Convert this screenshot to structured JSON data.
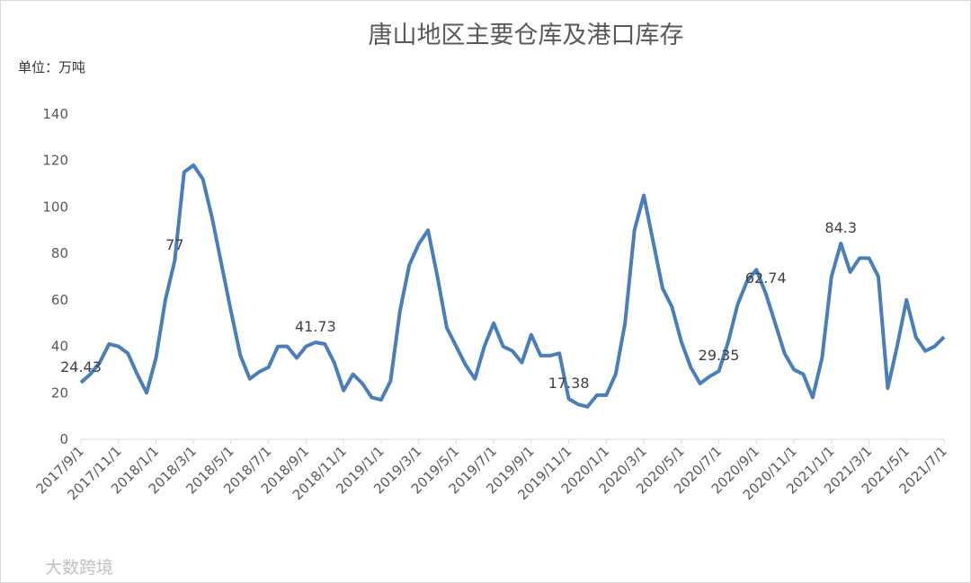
{
  "chart_data": {
    "type": "line",
    "title": "唐山地区主要仓库及港口库存",
    "y_axis_label": "单位：万吨",
    "watermark": "大数跨境",
    "categories": [
      "2017/9/1",
      null,
      null,
      null,
      "2017/11/1",
      null,
      null,
      null,
      "2018/1/1",
      null,
      null,
      null,
      "2018/3/1",
      null,
      null,
      null,
      "2018/5/1",
      null,
      null,
      null,
      "2018/7/1",
      null,
      null,
      null,
      "2018/9/1",
      null,
      null,
      null,
      "2018/11/1",
      null,
      null,
      null,
      "2019/1/1",
      null,
      null,
      null,
      "2019/3/1",
      null,
      null,
      null,
      "2019/5/1",
      null,
      null,
      null,
      "2019/7/1",
      null,
      null,
      null,
      "2019/9/1",
      null,
      null,
      null,
      "2019/11/1",
      null,
      null,
      null,
      "2020/1/1",
      null,
      null,
      null,
      "2020/3/1",
      null,
      null,
      null,
      "2020/5/1",
      null,
      null,
      null,
      "2020/7/1",
      null,
      null,
      null,
      "2020/9/1",
      null,
      null,
      null,
      "2020/11/1",
      null,
      null,
      null,
      "2021/1/1",
      null,
      null,
      null,
      "2021/3/1",
      null,
      null,
      null,
      "2021/5/1",
      null,
      null,
      null,
      "2021/7/1"
    ],
    "series": [
      {
        "color": "#4a7ebb",
        "values": [
          24.43,
          28,
          33,
          41,
          40,
          37,
          28,
          20,
          35,
          60,
          77,
          115,
          118,
          112,
          95,
          75,
          55,
          36,
          26,
          29,
          31,
          40,
          40,
          35,
          40,
          41.73,
          41,
          33,
          21,
          28,
          24,
          18,
          17,
          25,
          55,
          75,
          84,
          90,
          70,
          48,
          40,
          32,
          26,
          40,
          50,
          40,
          38,
          33,
          45,
          36,
          36,
          37,
          17.38,
          15,
          14,
          19,
          19,
          28,
          50,
          90,
          105,
          85,
          65,
          57,
          42,
          31,
          24,
          27,
          29.35,
          42,
          58,
          68,
          73,
          62.74,
          50,
          37,
          30,
          28,
          18,
          35,
          70,
          84.3,
          72,
          78,
          78,
          70,
          22,
          40,
          60,
          44,
          38,
          40,
          44
        ],
        "value_labels": [
          "24.43",
          null,
          null,
          null,
          null,
          null,
          null,
          null,
          null,
          null,
          "77",
          null,
          null,
          null,
          null,
          null,
          null,
          null,
          null,
          null,
          null,
          null,
          null,
          null,
          null,
          "41.73",
          null,
          null,
          null,
          null,
          null,
          null,
          null,
          null,
          null,
          null,
          null,
          null,
          null,
          null,
          null,
          null,
          null,
          null,
          null,
          null,
          null,
          null,
          null,
          null,
          null,
          null,
          "17.38",
          null,
          null,
          null,
          null,
          null,
          null,
          null,
          null,
          null,
          null,
          null,
          null,
          null,
          null,
          null,
          "29.35",
          null,
          null,
          null,
          null,
          "62.74",
          null,
          null,
          null,
          null,
          null,
          null,
          null,
          "84.3",
          null,
          null,
          null,
          null,
          null,
          null,
          null,
          null,
          null,
          null,
          null
        ]
      }
    ],
    "ylim": [
      0,
      140
    ],
    "yticks": [
      0,
      20,
      40,
      60,
      80,
      100,
      120,
      140
    ],
    "grid": false
  }
}
